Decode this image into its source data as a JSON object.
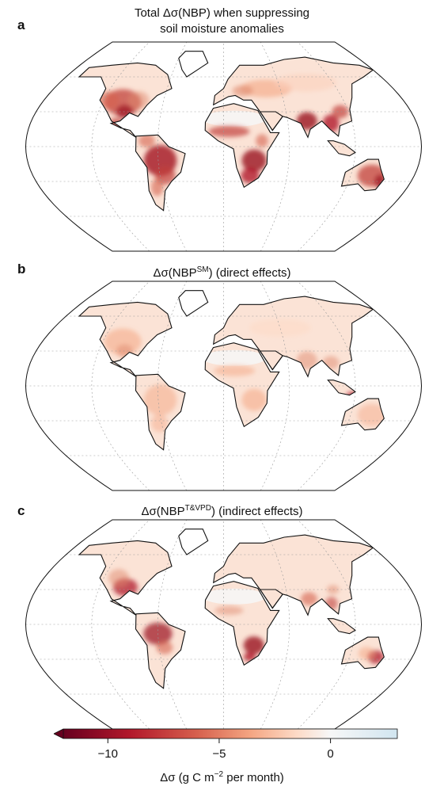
{
  "panels": [
    {
      "letter": "a",
      "title_line1": "Total Δσ(NBP) when suppressing",
      "title_line2": "soil moisture anomalies"
    },
    {
      "letter": "b",
      "title_main": "Δσ(NBP",
      "title_sup": "SM",
      "title_rest": ") (direct effects)"
    },
    {
      "letter": "c",
      "title_main": "Δσ(NBP",
      "title_sup": "T&VPD",
      "title_rest": ") (indirect effects)"
    }
  ],
  "colorbar": {
    "min": -12,
    "max": 3,
    "ticks": [
      {
        "value": -10,
        "label": "−10"
      },
      {
        "value": -5,
        "label": "−5"
      },
      {
        "value": 0,
        "label": "0"
      }
    ],
    "label_main": "Δσ (g C m",
    "label_sup": "−2",
    "label_rest": " per month)",
    "colors": [
      "#67001f",
      "#b2182b",
      "#d6604d",
      "#f4a582",
      "#fddbc7",
      "#f7f7f7",
      "#d1e5f0"
    ]
  }
}
